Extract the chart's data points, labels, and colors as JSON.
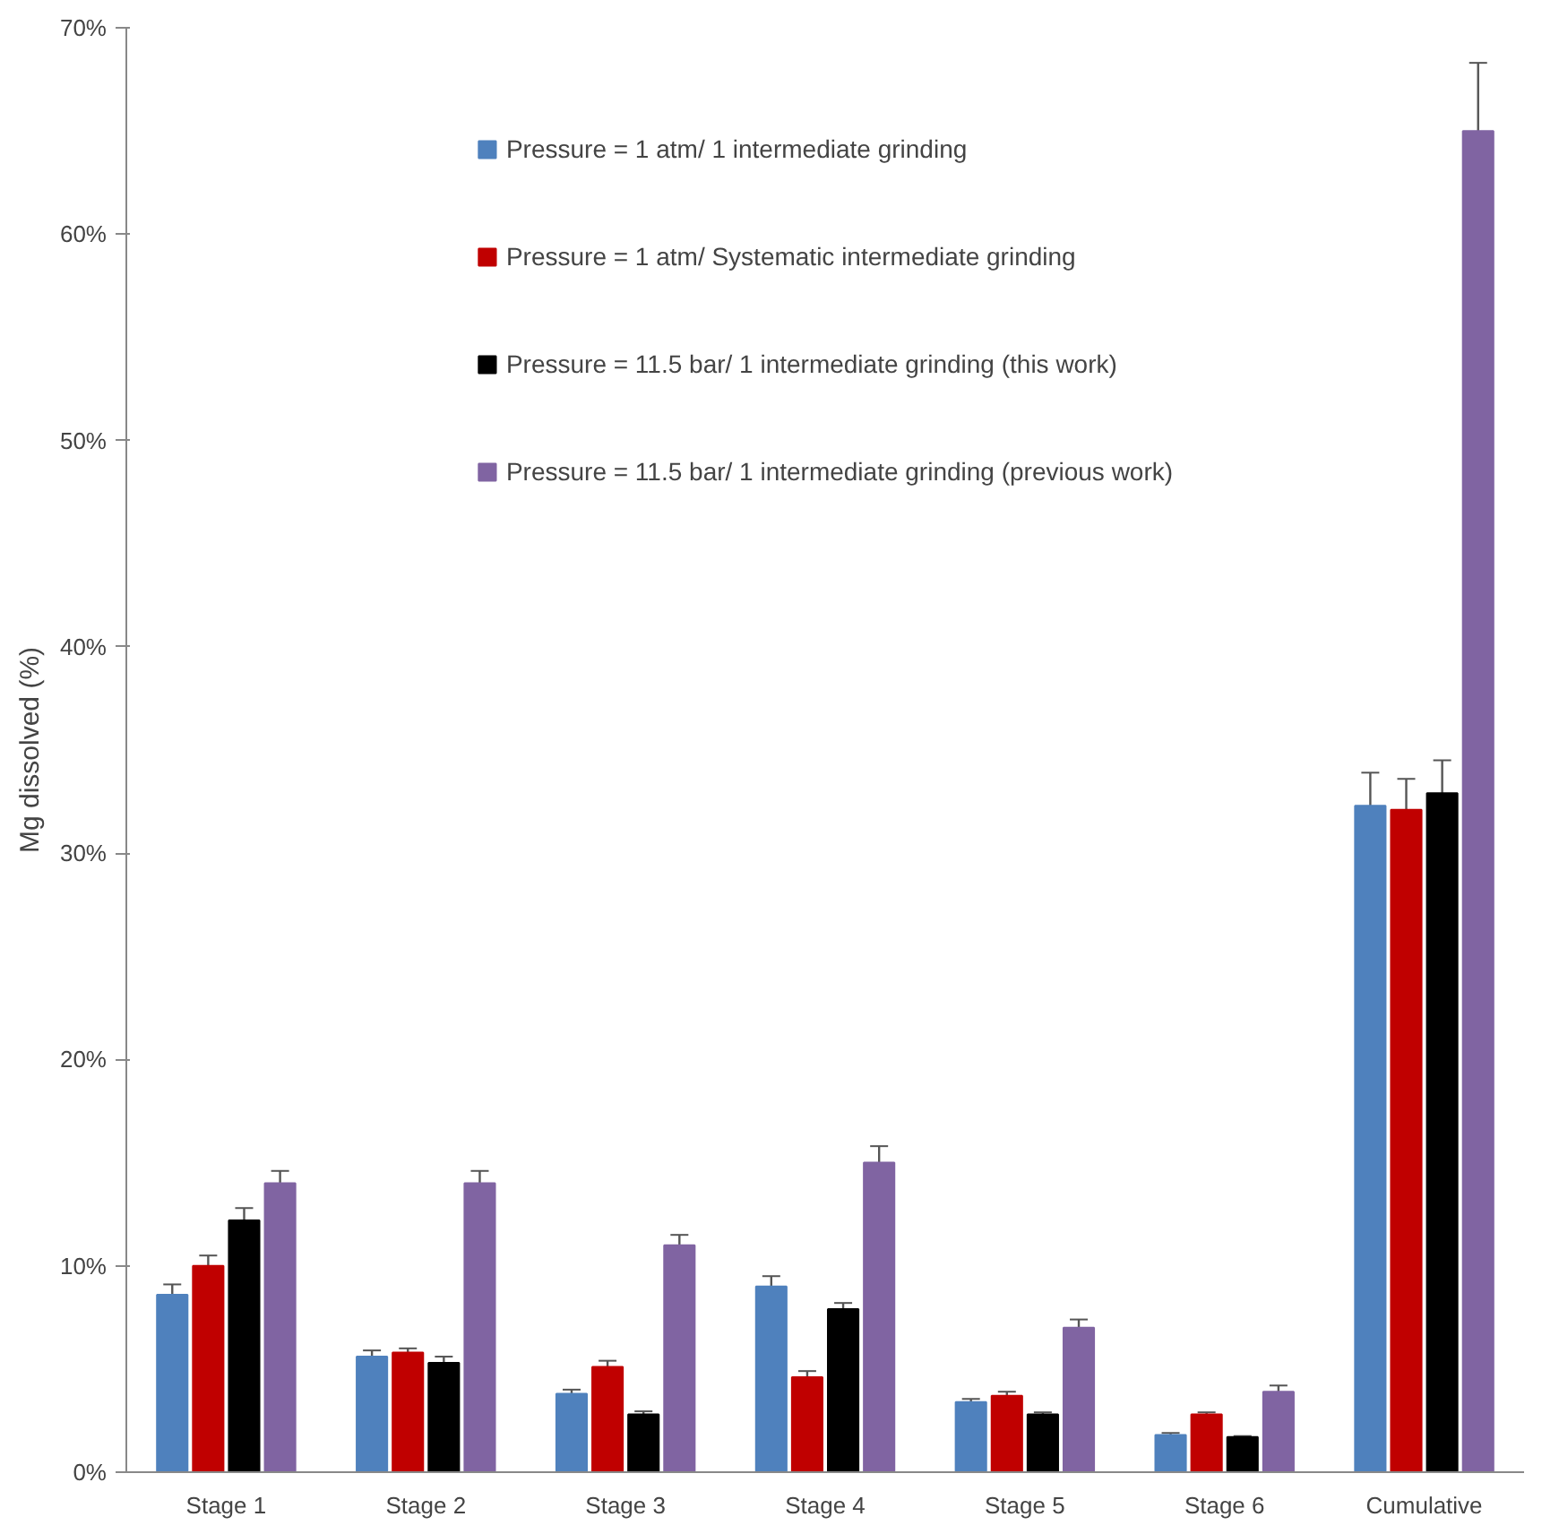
{
  "chart_data": {
    "type": "bar",
    "ylabel": "Mg dissolved (%)",
    "categories": [
      "Stage 1",
      "Stage 2",
      "Stage 3",
      "Stage 4",
      "Stage 5",
      "Stage 6",
      "Cumulative"
    ],
    "series": [
      {
        "name": "Pressure = 1 atm/ 1 intermediate grinding",
        "color": "#4f81bd",
        "values": [
          8.6,
          5.6,
          3.8,
          9.0,
          3.4,
          1.8,
          32.3
        ],
        "errors": [
          0.5,
          0.3,
          0.2,
          0.5,
          0.15,
          0.1,
          1.6
        ]
      },
      {
        "name": "Pressure = 1 atm/ Systematic intermediate grinding",
        "color": "#c00000",
        "values": [
          10.0,
          5.8,
          5.1,
          4.6,
          3.7,
          2.8,
          32.1
        ],
        "errors": [
          0.5,
          0.2,
          0.3,
          0.3,
          0.2,
          0.1,
          1.5
        ]
      },
      {
        "name": "Pressure = 11.5 bar/ 1 intermediate grinding (this work)",
        "color": "#000000",
        "values": [
          12.2,
          5.3,
          2.8,
          7.9,
          2.8,
          1.7,
          32.9
        ],
        "errors": [
          0.6,
          0.3,
          0.15,
          0.3,
          0.1,
          0.05,
          1.6
        ]
      },
      {
        "name": "Pressure = 11.5 bar/ 1 intermediate grinding (previous work)",
        "color": "#8064a2",
        "values": [
          14.0,
          14.0,
          11.0,
          15.0,
          7.0,
          3.9,
          65.0
        ],
        "errors": [
          0.6,
          0.6,
          0.5,
          0.8,
          0.4,
          0.3,
          3.3
        ]
      }
    ],
    "ylim": [
      0,
      70
    ],
    "yticks": [
      {
        "value": 0,
        "label": "0%"
      },
      {
        "value": 10,
        "label": "10%"
      },
      {
        "value": 20,
        "label": "20%"
      },
      {
        "value": 30,
        "label": "30%"
      },
      {
        "value": 40,
        "label": "40%"
      },
      {
        "value": 50,
        "label": "50%"
      },
      {
        "value": 60,
        "label": "60%"
      },
      {
        "value": 70,
        "label": "70%"
      }
    ],
    "grid": false,
    "legend": "top"
  }
}
